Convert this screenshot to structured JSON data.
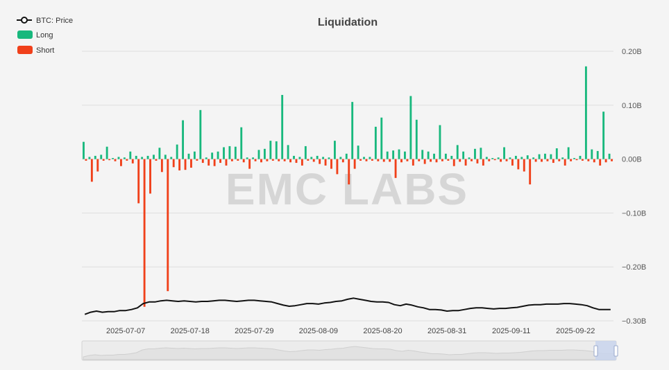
{
  "chart_data": {
    "type": "bar",
    "title": "Liquidation",
    "watermark": "EMC LABS",
    "legend": [
      {
        "name": "BTC: Price",
        "color": "#111111",
        "kind": "line"
      },
      {
        "name": "Long",
        "color": "#18b87d",
        "kind": "bar"
      },
      {
        "name": "Short",
        "color": "#f0401a",
        "kind": "bar"
      }
    ],
    "legend_position": "top-left",
    "y_axis": {
      "position": "right",
      "ylim": [
        -0.3,
        0.2
      ],
      "ticks": [
        0.2,
        0.1,
        0.0,
        -0.1,
        -0.2,
        -0.3
      ],
      "tick_labels": [
        "0.20B",
        "0.10B",
        "0.00B",
        "−0.10B",
        "−0.20B",
        "−0.30B"
      ]
    },
    "x_axis": {
      "tick_labels": [
        "2025-07-07",
        "2025-07-18",
        "2025-07-29",
        "2025-08-09",
        "2025-08-20",
        "2025-08-31",
        "2025-09-11",
        "2025-09-22"
      ],
      "tick_days": [
        7,
        18,
        29,
        40,
        51,
        62,
        73,
        84
      ]
    },
    "grid": true,
    "start_date": "2025-06-30",
    "days": 90,
    "series": [
      {
        "name": "Long",
        "color": "#18b87d",
        "values": [
          0.032,
          0.004,
          0.006,
          0.008,
          0.023,
          0.002,
          0.004,
          0.003,
          0.014,
          0.006,
          0.004,
          0.006,
          0.008,
          0.021,
          0.008,
          0.004,
          0.027,
          0.072,
          0.01,
          0.014,
          0.091,
          0.003,
          0.012,
          0.014,
          0.022,
          0.024,
          0.023,
          0.059,
          0.003,
          0.003,
          0.017,
          0.019,
          0.034,
          0.033,
          0.119,
          0.026,
          0.006,
          0.004,
          0.024,
          0.004,
          0.006,
          0.004,
          0.003,
          0.034,
          0.004,
          0.01,
          0.106,
          0.025,
          0.004,
          0.004,
          0.06,
          0.077,
          0.014,
          0.016,
          0.018,
          0.014,
          0.117,
          0.073,
          0.017,
          0.014,
          0.01,
          0.063,
          0.01,
          0.006,
          0.026,
          0.014,
          0.003,
          0.019,
          0.021,
          0.004,
          0.002,
          0.003,
          0.022,
          0.003,
          0.006,
          0.004,
          0.007,
          0.003,
          0.009,
          0.01,
          0.009,
          0.02,
          0.003,
          0.022,
          0.002,
          0.006,
          0.172,
          0.018,
          0.015,
          0.088,
          0.01
        ],
        "_note": ""
      },
      {
        "name": "Short",
        "color": "#f0401a",
        "values": [
          -0.003,
          -0.042,
          -0.023,
          -0.003,
          -0.002,
          -0.004,
          -0.013,
          -0.003,
          -0.008,
          -0.082,
          -0.274,
          -0.064,
          -0.003,
          -0.024,
          -0.245,
          -0.015,
          -0.021,
          -0.02,
          -0.016,
          -0.003,
          -0.007,
          -0.012,
          -0.013,
          -0.007,
          -0.012,
          -0.004,
          -0.003,
          -0.006,
          -0.018,
          -0.004,
          -0.006,
          -0.004,
          -0.003,
          -0.004,
          -0.004,
          -0.006,
          -0.007,
          -0.012,
          -0.003,
          -0.005,
          -0.009,
          -0.012,
          -0.018,
          -0.028,
          -0.006,
          -0.047,
          -0.018,
          -0.003,
          -0.004,
          -0.003,
          -0.004,
          -0.005,
          -0.005,
          -0.035,
          -0.006,
          -0.004,
          -0.012,
          -0.004,
          -0.009,
          -0.005,
          -0.006,
          -0.004,
          -0.003,
          -0.013,
          -0.005,
          -0.012,
          -0.004,
          -0.008,
          -0.012,
          -0.004,
          -0.002,
          -0.005,
          -0.004,
          -0.012,
          -0.019,
          -0.023,
          -0.047,
          -0.005,
          -0.005,
          -0.004,
          -0.007,
          -0.004,
          -0.012,
          -0.004,
          -0.002,
          -0.003,
          -0.004,
          -0.006,
          -0.012,
          -0.006,
          -0.004
        ]
      },
      {
        "name": "BTC: Price",
        "color": "#111111",
        "values": [
          -0.288,
          -0.284,
          -0.282,
          -0.284,
          -0.283,
          -0.283,
          -0.281,
          -0.281,
          -0.279,
          -0.276,
          -0.268,
          -0.265,
          -0.265,
          -0.263,
          -0.262,
          -0.263,
          -0.264,
          -0.263,
          -0.264,
          -0.265,
          -0.264,
          -0.264,
          -0.263,
          -0.262,
          -0.262,
          -0.263,
          -0.264,
          -0.263,
          -0.262,
          -0.262,
          -0.263,
          -0.264,
          -0.265,
          -0.268,
          -0.271,
          -0.273,
          -0.272,
          -0.27,
          -0.268,
          -0.268,
          -0.269,
          -0.267,
          -0.266,
          -0.264,
          -0.263,
          -0.26,
          -0.258,
          -0.26,
          -0.262,
          -0.264,
          -0.265,
          -0.265,
          -0.266,
          -0.27,
          -0.272,
          -0.269,
          -0.271,
          -0.274,
          -0.276,
          -0.279,
          -0.279,
          -0.28,
          -0.282,
          -0.281,
          -0.281,
          -0.279,
          -0.277,
          -0.276,
          -0.276,
          -0.277,
          -0.278,
          -0.277,
          -0.277,
          -0.276,
          -0.275,
          -0.273,
          -0.271,
          -0.27,
          -0.27,
          -0.269,
          -0.269,
          -0.269,
          -0.268,
          -0.268,
          -0.269,
          -0.27,
          -0.272,
          -0.276,
          -0.279,
          -0.279,
          -0.279
        ]
      }
    ]
  }
}
